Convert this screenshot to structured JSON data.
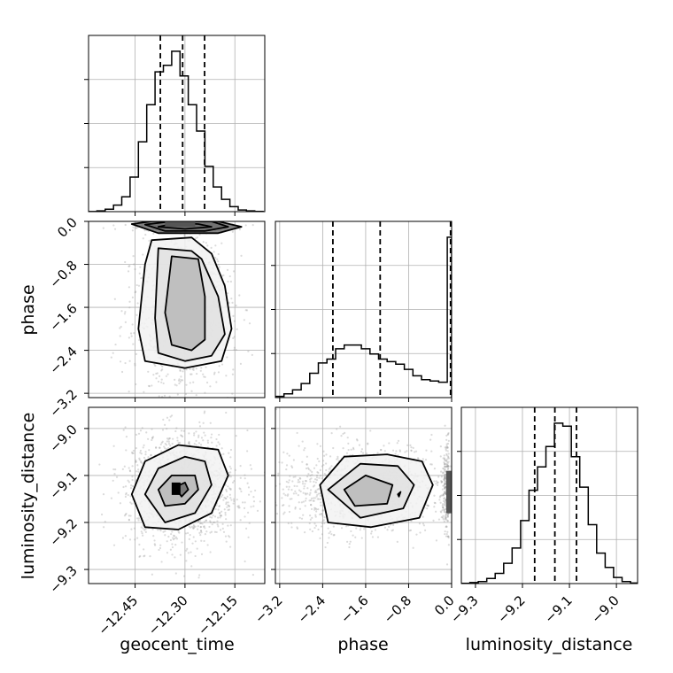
{
  "chart_data": {
    "type": "corner",
    "parameters": [
      "geocent_time",
      "phase",
      "luminosity_distance"
    ],
    "axis_labels": {
      "geocent_time": "geocent_time",
      "phase": "phase",
      "luminosity_distance": "luminosity_distance"
    },
    "ranges": {
      "geocent_time": [
        -12.59,
        -12.06
      ],
      "phase": [
        -3.28,
        0.0
      ],
      "luminosity_distance": [
        -9.33,
        -8.955
      ]
    },
    "ticks": {
      "geocent_time": [
        -12.45,
        -12.3,
        -12.15
      ],
      "phase": [
        -3.2,
        -2.4,
        -1.6,
        -0.8,
        0.0
      ],
      "luminosity_distance": [
        -9.3,
        -9.2,
        -9.1,
        -9.0
      ]
    },
    "tick_labels": {
      "geocent_time": [
        "−12.45",
        "−12.30",
        "−12.15"
      ],
      "phase": [
        "−3.2",
        "−2.4",
        "−1.6",
        "−0.8",
        "0.0"
      ],
      "luminosity_distance": [
        "−9.3",
        "−9.2",
        "−9.1",
        "−9.0"
      ]
    },
    "grid": true,
    "histograms": {
      "geocent_time": {
        "bin_edges": [
          -12.59,
          -12.565,
          -12.54,
          -12.515,
          -12.49,
          -12.465,
          -12.44,
          -12.415,
          -12.39,
          -12.365,
          -12.34,
          -12.315,
          -12.29,
          -12.265,
          -12.24,
          -12.215,
          -12.19,
          -12.165,
          -12.14,
          -12.115,
          -12.09,
          -12.065
        ],
        "counts": [
          0.1,
          1,
          3,
          8,
          18,
          42,
          85,
          130,
          170,
          178,
          195,
          165,
          130,
          98,
          55,
          30,
          15,
          6,
          2,
          1,
          0.2
        ],
        "quantiles": [
          -12.374,
          -12.307,
          -12.241
        ]
      },
      "phase": {
        "bin_edges": [
          -3.28,
          -3.12,
          -2.96,
          -2.8,
          -2.64,
          -2.48,
          -2.32,
          -2.16,
          -2.0,
          -1.84,
          -1.68,
          -1.52,
          -1.36,
          -1.2,
          -1.04,
          -0.88,
          -0.72,
          -0.56,
          -0.4,
          -0.24,
          -0.08,
          0.0
        ],
        "counts": [
          1,
          3,
          6,
          11,
          19,
          27,
          30,
          38,
          41,
          41,
          38,
          34,
          30,
          28,
          26,
          22,
          17,
          14,
          13,
          12,
          125
        ],
        "quantiles": [
          -2.21,
          -1.33,
          -0.02
        ]
      },
      "luminosity_distance": {
        "bin_edges": [
          -9.33,
          -9.312,
          -9.294,
          -9.276,
          -9.258,
          -9.24,
          -9.222,
          -9.204,
          -9.186,
          -9.168,
          -9.15,
          -9.132,
          -9.114,
          -9.096,
          -9.078,
          -9.06,
          -9.042,
          -9.024,
          -9.006,
          -8.988,
          -8.97,
          -8.952
        ],
        "counts": [
          0.3,
          1,
          2,
          5,
          10,
          20,
          35,
          62,
          92,
          115,
          135,
          158,
          155,
          125,
          95,
          58,
          30,
          16,
          6,
          2,
          0.5
        ],
        "quantiles": [
          -9.174,
          -9.131,
          -9.085
        ]
      }
    },
    "scatter_centers": {
      "geocent_time__phase": {
        "x": -12.305,
        "y": -1.7,
        "x_spread": 0.06,
        "y_spread": 0.6
      },
      "geocent_time__luminosity_distance": {
        "x": -12.31,
        "y": -9.13,
        "x_spread": 0.07,
        "y_spread": 0.05
      },
      "phase__luminosity_distance": {
        "x": -1.6,
        "y": -9.13,
        "x_spread": 0.7,
        "y_spread": 0.04
      }
    },
    "contours": {
      "geocent_time__phase": [
        [
          [
            -12.38,
            -0.1
          ],
          [
            -12.32,
            -0.03
          ],
          [
            -12.26,
            -0.05
          ],
          [
            -12.22,
            -0.1
          ],
          [
            -12.3,
            -0.14
          ],
          [
            -12.38,
            -0.1
          ]
        ],
        [
          [
            -12.42,
            -0.06
          ],
          [
            -12.34,
            0.0
          ],
          [
            -12.22,
            0.0
          ],
          [
            -12.17,
            -0.1
          ],
          [
            -12.24,
            -0.18
          ],
          [
            -12.36,
            -0.18
          ],
          [
            -12.42,
            -0.06
          ]
        ],
        [
          [
            -12.46,
            -0.05
          ],
          [
            -12.4,
            0.0
          ],
          [
            -12.2,
            0.0
          ],
          [
            -12.13,
            -0.1
          ],
          [
            -12.2,
            -0.22
          ],
          [
            -12.38,
            -0.22
          ],
          [
            -12.46,
            -0.05
          ]
        ],
        [
          [
            -12.34,
            -0.65
          ],
          [
            -12.26,
            -0.7
          ],
          [
            -12.24,
            -1.4
          ],
          [
            -12.24,
            -2.2
          ],
          [
            -12.28,
            -2.4
          ],
          [
            -12.34,
            -2.3
          ],
          [
            -12.36,
            -1.7
          ],
          [
            -12.34,
            -0.65
          ]
        ],
        [
          [
            -12.38,
            -0.5
          ],
          [
            -12.28,
            -0.55
          ],
          [
            -12.25,
            -0.7
          ],
          [
            -12.2,
            -1.4
          ],
          [
            -12.18,
            -2.1
          ],
          [
            -12.22,
            -2.5
          ],
          [
            -12.3,
            -2.6
          ],
          [
            -12.38,
            -2.45
          ],
          [
            -12.39,
            -1.8
          ],
          [
            -12.38,
            -0.5
          ]
        ],
        [
          [
            -12.4,
            -0.35
          ],
          [
            -12.28,
            -0.3
          ],
          [
            -12.22,
            -0.6
          ],
          [
            -12.18,
            -1.2
          ],
          [
            -12.16,
            -2.0
          ],
          [
            -12.19,
            -2.6
          ],
          [
            -12.3,
            -2.73
          ],
          [
            -12.42,
            -2.6
          ],
          [
            -12.44,
            -2.0
          ],
          [
            -12.42,
            -0.8
          ],
          [
            -12.4,
            -0.35
          ]
        ]
      ],
      "geocent_time__luminosity_distance": [
        [
          [
            -12.33,
            -9.125
          ],
          [
            -12.3,
            -9.115
          ],
          [
            -12.29,
            -9.13
          ],
          [
            -12.31,
            -9.145
          ],
          [
            -12.33,
            -9.125
          ]
        ],
        [
          [
            -12.38,
            -9.13
          ],
          [
            -12.34,
            -9.1
          ],
          [
            -12.27,
            -9.1
          ],
          [
            -12.26,
            -9.13
          ],
          [
            -12.3,
            -9.16
          ],
          [
            -12.36,
            -9.165
          ],
          [
            -12.38,
            -9.13
          ]
        ],
        [
          [
            -12.42,
            -9.14
          ],
          [
            -12.38,
            -9.085
          ],
          [
            -12.3,
            -9.06
          ],
          [
            -12.24,
            -9.07
          ],
          [
            -12.22,
            -9.12
          ],
          [
            -12.27,
            -9.18
          ],
          [
            -12.36,
            -9.2
          ],
          [
            -12.42,
            -9.14
          ]
        ],
        [
          [
            -12.46,
            -9.14
          ],
          [
            -12.42,
            -9.07
          ],
          [
            -12.32,
            -9.035
          ],
          [
            -12.2,
            -9.045
          ],
          [
            -12.17,
            -9.1
          ],
          [
            -12.22,
            -9.18
          ],
          [
            -12.32,
            -9.215
          ],
          [
            -12.42,
            -9.21
          ],
          [
            -12.46,
            -9.14
          ]
        ]
      ],
      "phase__luminosity_distance": [
        [
          [
            -1.0,
            -9.14
          ],
          [
            -0.95,
            -9.135
          ],
          [
            -0.98,
            -9.145
          ],
          [
            -1.0,
            -9.14
          ]
        ],
        [
          [
            -2.0,
            -9.13
          ],
          [
            -1.6,
            -9.1
          ],
          [
            -1.1,
            -9.12
          ],
          [
            -1.2,
            -9.16
          ],
          [
            -1.8,
            -9.165
          ],
          [
            -2.0,
            -9.13
          ]
        ],
        [
          [
            -2.3,
            -9.13
          ],
          [
            -1.7,
            -9.075
          ],
          [
            -1.0,
            -9.08
          ],
          [
            -0.7,
            -9.12
          ],
          [
            -0.9,
            -9.17
          ],
          [
            -1.7,
            -9.19
          ],
          [
            -2.3,
            -9.13
          ]
        ],
        [
          [
            -2.45,
            -9.12
          ],
          [
            -2.0,
            -9.06
          ],
          [
            -1.2,
            -9.055
          ],
          [
            -0.55,
            -9.07
          ],
          [
            -0.35,
            -9.12
          ],
          [
            -0.6,
            -9.19
          ],
          [
            -1.5,
            -9.21
          ],
          [
            -2.3,
            -9.2
          ],
          [
            -2.45,
            -9.12
          ]
        ]
      ]
    }
  }
}
